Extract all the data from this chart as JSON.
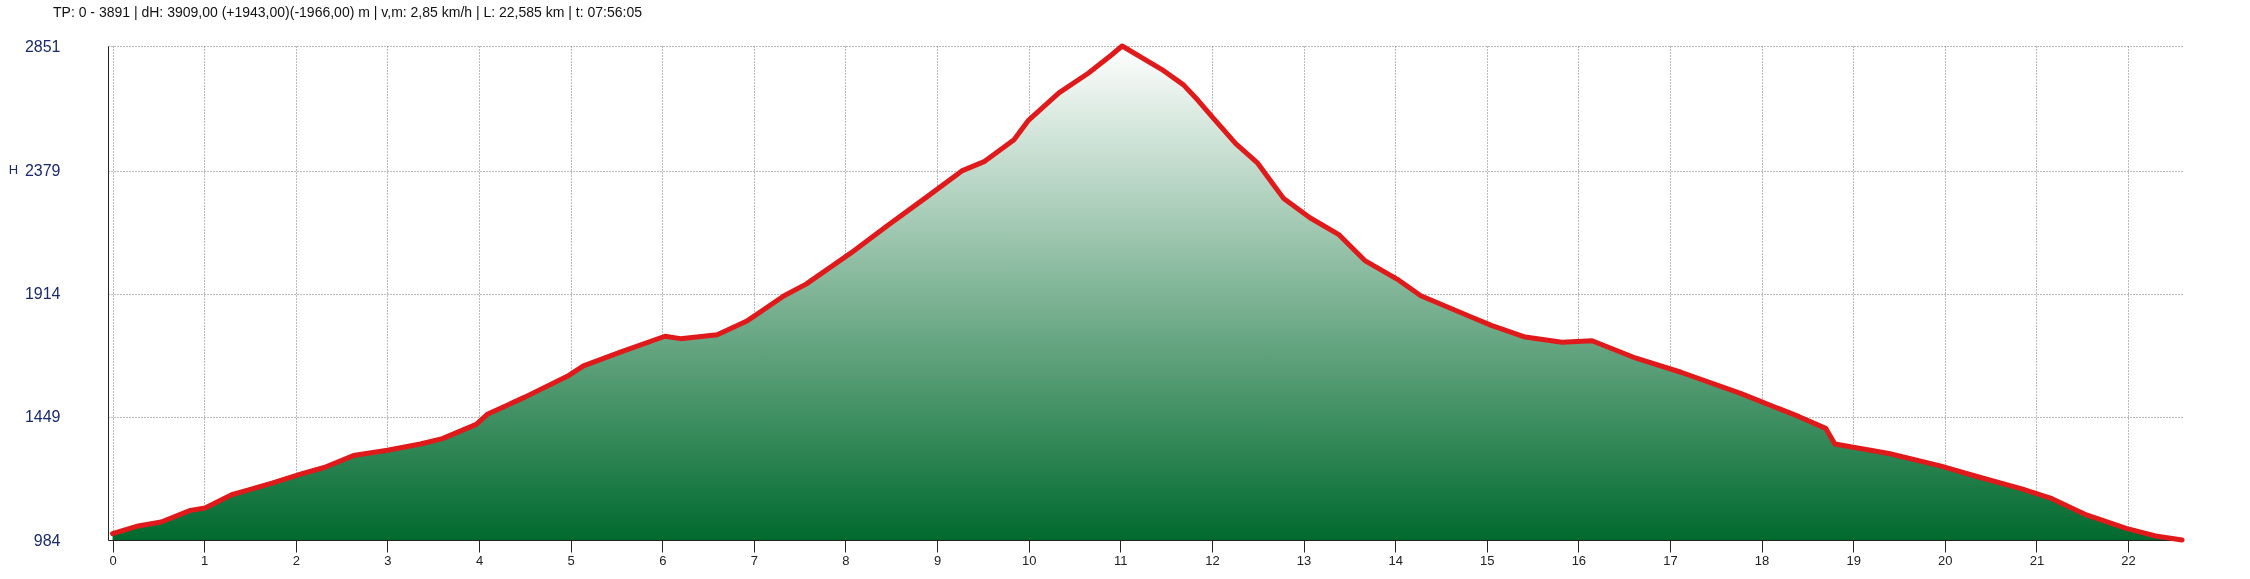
{
  "chart_data": {
    "type": "area",
    "title": "TP: 0 - 3891 | dH: 3909,00  (+1943,00)(-1966,00) m | v,m: 2,85 km/h | L: 22,585 km | t: 07:56:05",
    "ylabel": "H",
    "x": [
      0,
      0.28,
      0.53,
      0.85,
      1.01,
      1.3,
      1.74,
      2.07,
      2.31,
      2.63,
      3.0,
      3.36,
      3.6,
      3.97,
      4.09,
      4.5,
      4.98,
      5.14,
      5.55,
      6.03,
      6.2,
      6.6,
      6.93,
      7.33,
      7.57,
      8.06,
      8.46,
      8.87,
      9.27,
      9.52,
      9.84,
      10.0,
      10.33,
      10.65,
      10.9,
      11.02,
      11.45,
      11.69,
      11.85,
      12.01,
      12.26,
      12.5,
      12.78,
      13.07,
      13.39,
      13.67,
      14.04,
      14.28,
      14.85,
      15.05,
      15.42,
      15.82,
      16.15,
      16.63,
      17.12,
      17.77,
      18.41,
      18.7,
      18.8,
      19.39,
      19.95,
      20.36,
      20.85,
      21.17,
      21.53,
      21.98,
      22.3,
      22.59
    ],
    "series": [
      {
        "color": "#e0191b",
        "values": [
          1008,
          1037,
          1052,
          1096,
          1105,
          1155,
          1199,
          1235,
          1258,
          1303,
          1323,
          1347,
          1367,
          1421,
          1459,
          1524,
          1606,
          1642,
          1695,
          1754,
          1745,
          1760,
          1813,
          1907,
          1951,
          2069,
          2173,
          2276,
          2379,
          2415,
          2497,
          2571,
          2674,
          2748,
          2816,
          2851,
          2763,
          2704,
          2645,
          2580,
          2482,
          2408,
          2276,
          2202,
          2137,
          2040,
          1966,
          1907,
          1824,
          1795,
          1751,
          1731,
          1737,
          1671,
          1618,
          1538,
          1450,
          1406,
          1347,
          1311,
          1264,
          1223,
          1176,
          1140,
          1081,
          1028,
          999,
          984
        ]
      }
    ],
    "xlim": [
      -0.05,
      22.6
    ],
    "ylim": [
      984,
      2851
    ],
    "xticks": [
      0,
      1,
      2,
      3,
      4,
      5,
      6,
      7,
      8,
      9,
      10,
      11,
      12,
      13,
      14,
      15,
      16,
      17,
      18,
      19,
      20,
      21,
      22
    ],
    "yticks": [
      984,
      1449,
      1914,
      2379,
      2851
    ],
    "grid": true
  }
}
